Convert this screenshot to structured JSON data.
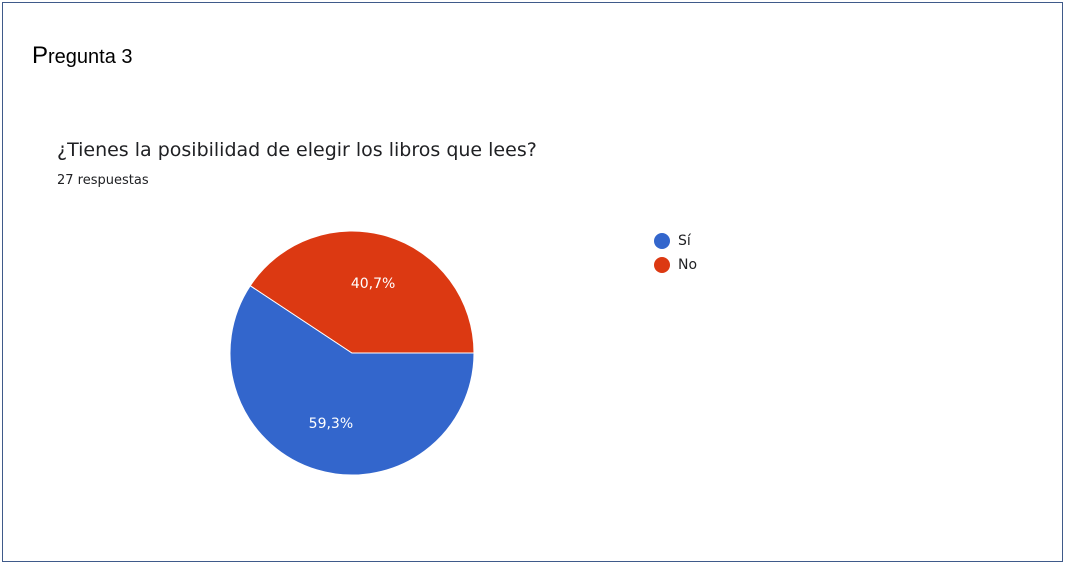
{
  "section": {
    "title_first": "P",
    "title_rest": "regunta 3"
  },
  "chart_data": {
    "type": "pie",
    "title": "¿Tienes la posibilidad de elegir los libros que lees?",
    "subtitle": "27 respuestas",
    "legend_position": "right",
    "slices": [
      {
        "label": "Sí",
        "value": 59.3,
        "display": "59,3%",
        "color": "#3366cc"
      },
      {
        "label": "No",
        "value": 40.7,
        "display": "40,7%",
        "color": "#dc3912"
      }
    ]
  }
}
